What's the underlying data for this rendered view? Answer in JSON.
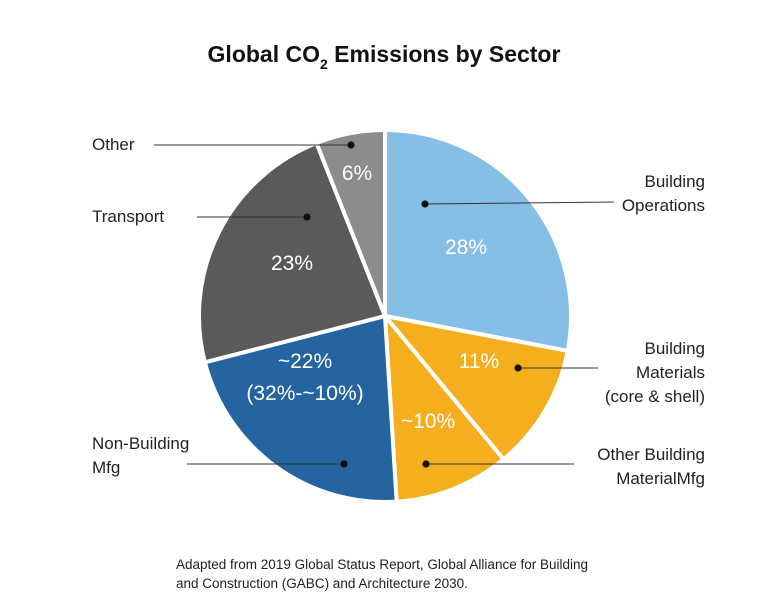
{
  "chart_data": {
    "type": "pie",
    "title": {
      "prefix": "Global CO",
      "subscript": "2",
      "suffix": " Emissions by Sector"
    },
    "slices": [
      {
        "label": [
          "Building",
          "Operations"
        ],
        "value": 28,
        "display": [
          "28%"
        ],
        "color": "#85bfe6"
      },
      {
        "label": [
          "Building",
          "Materials",
          "(core & shell)"
        ],
        "value": 11,
        "display": [
          "11%"
        ],
        "color": "#f5ae1e"
      },
      {
        "label": [
          "Other Building",
          "MaterialMfg"
        ],
        "value": 10,
        "display": [
          "~10%"
        ],
        "color": "#f5ae1e"
      },
      {
        "label": [
          "Non-Building",
          "Mfg"
        ],
        "value": 22,
        "display": [
          "~22%",
          "(32%-~10%)"
        ],
        "color": "#2464a0"
      },
      {
        "label": [
          "Transport"
        ],
        "value": 23,
        "display": [
          "23%"
        ],
        "color": "#5a5a5a"
      },
      {
        "label": [
          "Other"
        ],
        "value": 6,
        "display": [
          "6%"
        ],
        "color": "#8c8c8c"
      }
    ],
    "source": [
      "Adapted from 2019 Global Status Report, Global Alliance for Building",
      "and Construction (GABC) and Architecture 2030."
    ]
  }
}
